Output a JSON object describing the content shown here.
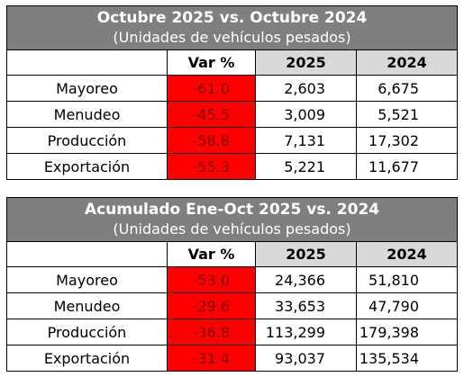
{
  "tables": [
    {
      "title": "Octubre 2025 vs. Octubre 2024",
      "subtitle": "(Unidades de vehículos pesados)",
      "columns": [
        "",
        "Var %",
        "2025",
        "2024"
      ],
      "rows": [
        {
          "label": "Mayoreo",
          "var": "-61.0",
          "y2025": "2,603",
          "y2024": "6,675"
        },
        {
          "label": "Menudeo",
          "var": "-45.5",
          "y2025": "3,009",
          "y2024": "5,521"
        },
        {
          "label": "Producción",
          "var": "-58.8",
          "y2025": "7,131",
          "y2024": "17,302"
        },
        {
          "label": "Exportación",
          "var": "-55.3",
          "y2025": "5,221",
          "y2024": "11,677"
        }
      ]
    },
    {
      "title": "Acumulado Ene-Oct 2025 vs. 2024",
      "subtitle": "(Unidades de vehículos pesados)",
      "columns": [
        "",
        "Var %",
        "2025",
        "2024"
      ],
      "rows": [
        {
          "label": "Mayoreo",
          "var": "-53.0",
          "y2025": "24,366",
          "y2024": "51,810"
        },
        {
          "label": "Menudeo",
          "var": "-29.6",
          "y2025": "33,653",
          "y2024": "47,790"
        },
        {
          "label": "Producción",
          "var": "-36.8",
          "y2025": "113,299",
          "y2024": "179,398"
        },
        {
          "label": "Exportación",
          "var": "-31.4",
          "y2025": "93,037",
          "y2024": "135,534"
        }
      ]
    }
  ],
  "colors": {
    "title_background": "#7f7f7f",
    "header_background": "#d9d9d9",
    "negative_highlight": "#ff0000"
  }
}
